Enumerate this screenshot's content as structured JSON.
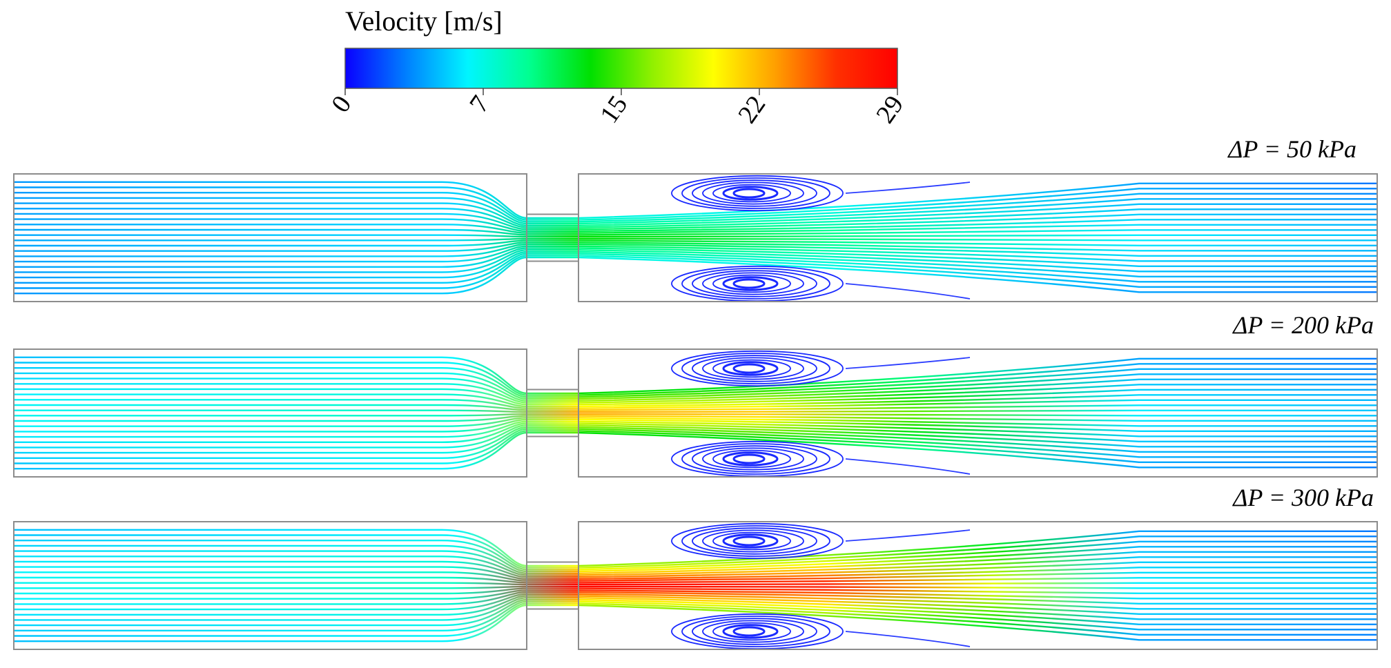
{
  "colorbar": {
    "title": "Velocity [m/s]",
    "ticks": [
      "0",
      "7",
      "15",
      "22",
      "29"
    ],
    "stops": [
      "#0a00ff",
      "#0080ff",
      "#00f5ff",
      "#00ff90",
      "#00e000",
      "#90f000",
      "#ffff00",
      "#ffa000",
      "#ff3000",
      "#ff0000"
    ]
  },
  "panels": [
    {
      "label": "ΔP = 50 kPa",
      "jet_speed": 0.45,
      "vortex_color": "#1a2aff"
    },
    {
      "label": "ΔP = 200 kPa",
      "jet_speed": 0.78,
      "vortex_color": "#1a2aff"
    },
    {
      "label": "ΔP = 300 kPa",
      "jet_speed": 1.0,
      "vortex_color": "#1a2aff"
    }
  ],
  "colors": {
    "wall": "#8c8c8c",
    "slow_flow": "#1a6cff",
    "medium_flow": "#22c8ff"
  }
}
